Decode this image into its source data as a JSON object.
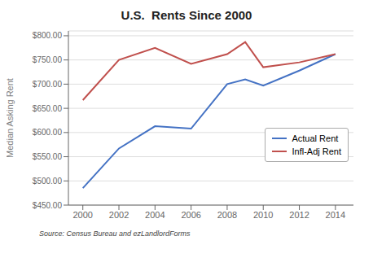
{
  "chart_data": {
    "type": "line",
    "title": "U.S.  Rents Since 2000",
    "ylabel": "Median Asking Rent",
    "annotations": [
      "Source: Census Bureau and ezLandlordForms"
    ],
    "x": [
      2000,
      2002,
      2004,
      2006,
      2008,
      2009,
      2010,
      2012,
      2014
    ],
    "series": [
      {
        "name": "Actual Rent",
        "color": "#4472C4",
        "values": [
          485,
          567,
          613,
          608,
          700,
          710,
          697,
          728,
          762
        ]
      },
      {
        "name": "Infl-Adj Rent",
        "color": "#C0504D",
        "values": [
          667,
          750,
          775,
          742,
          762,
          787,
          735,
          745,
          762
        ]
      }
    ],
    "xlim": [
      1999.2,
      2015.0
    ],
    "xticks": [
      2000,
      2002,
      2004,
      2006,
      2008,
      2010,
      2012,
      2014
    ],
    "ylim": [
      450,
      810
    ],
    "yticks": [
      {
        "value": 450,
        "label": "$450.00"
      },
      {
        "value": 500,
        "label": "$500.00"
      },
      {
        "value": 550,
        "label": "$550.00"
      },
      {
        "value": 600,
        "label": "$600.00"
      },
      {
        "value": 650,
        "label": "$650.00"
      },
      {
        "value": 700,
        "label": "$700.00"
      },
      {
        "value": 750,
        "label": "$750.00"
      },
      {
        "value": 800,
        "label": "$800.00"
      }
    ],
    "grid": true,
    "legend": "lower right"
  }
}
